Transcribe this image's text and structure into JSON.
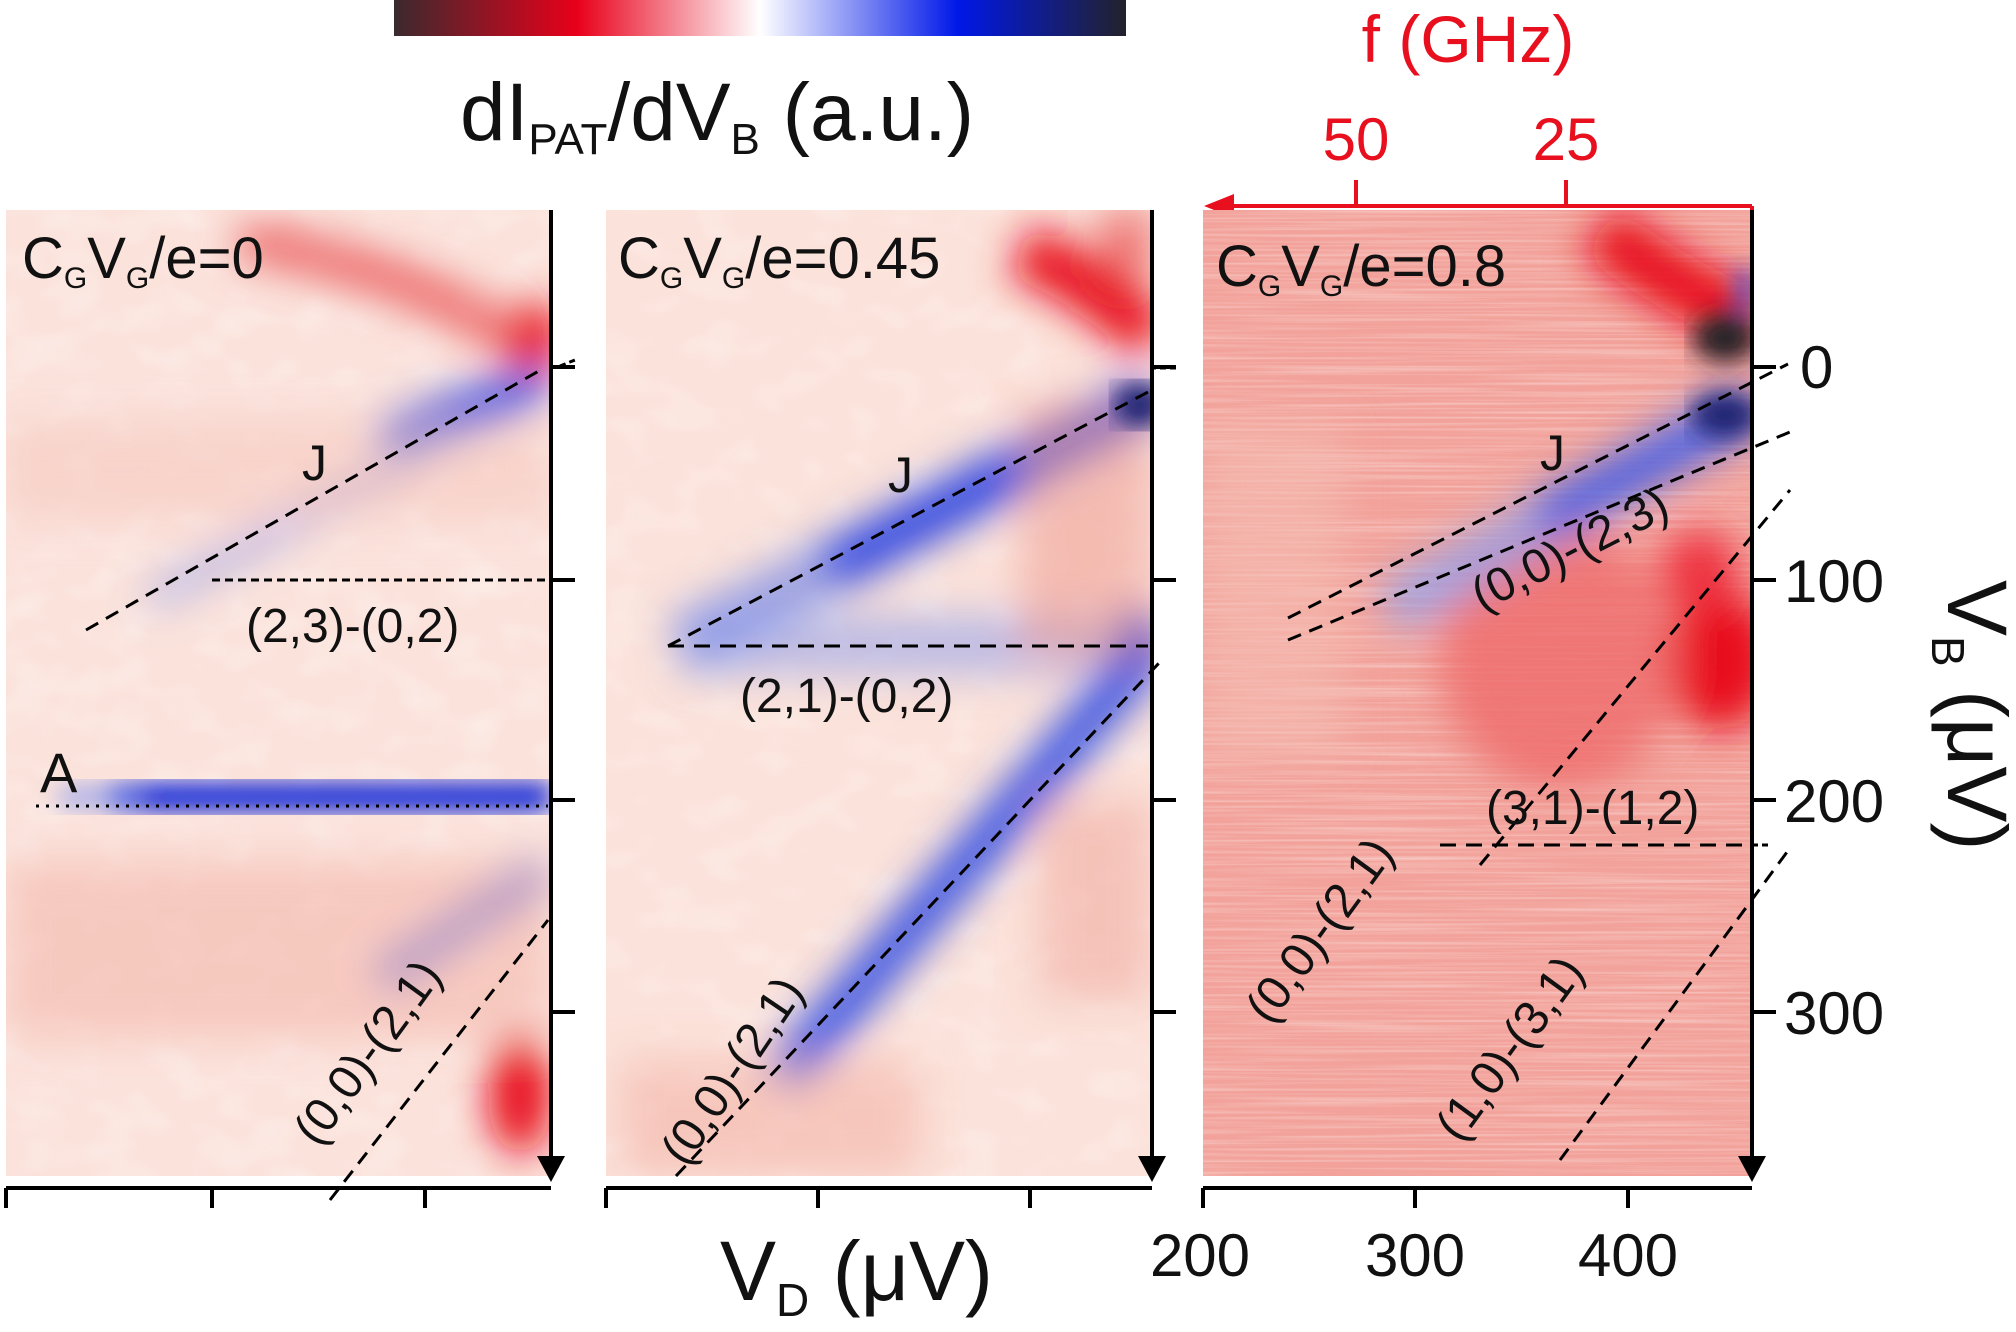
{
  "colorbar": {
    "label_main": "dI",
    "label_sub1": "PAT",
    "label_mid": "/dV",
    "label_sub2": "B",
    "label_tail": " (a.u.)",
    "colors": [
      "#3a2a2e",
      "#e8001a",
      "#ffffff",
      "#0018e8",
      "#22222a"
    ]
  },
  "freq_axis": {
    "label": "f (GHz)",
    "ticks": [
      "50",
      "25"
    ],
    "color": "#e8101e"
  },
  "chart_data": {
    "type": "heatmap",
    "xlabel_main": "V",
    "xlabel_sub": "D",
    "xlabel_tail": " (μV)",
    "ylabel": "V",
    "ylabel_sub": "B",
    "ylabel_tail": " (μV)",
    "yticks": [
      "0",
      "100",
      "200",
      "300"
    ],
    "xticks": [
      "200",
      "300",
      "400"
    ],
    "panels": [
      {
        "title_a": "C",
        "title_sub_a": "G",
        "title_b": "V",
        "title_sub_b": "G",
        "title_c": "/e=0",
        "labels": [
          "J",
          "(2,3)-(0,2)",
          "A",
          "(0,0)-(2,1)"
        ]
      },
      {
        "title_a": "C",
        "title_sub_a": "G",
        "title_b": "V",
        "title_sub_b": "G",
        "title_c": "/e=0.45",
        "labels": [
          "J",
          "(2,1)-(0,2)",
          "(0,0)-(2,1)"
        ]
      },
      {
        "title_a": "C",
        "title_sub_a": "G",
        "title_b": "V",
        "title_sub_b": "G",
        "title_c": "/e=0.8",
        "labels": [
          "J",
          "(0,0)-(2,3)",
          "(3,1)-(1,2)",
          "(0,0)-(2,1)",
          "(1,0)-(3,1)"
        ]
      }
    ]
  }
}
